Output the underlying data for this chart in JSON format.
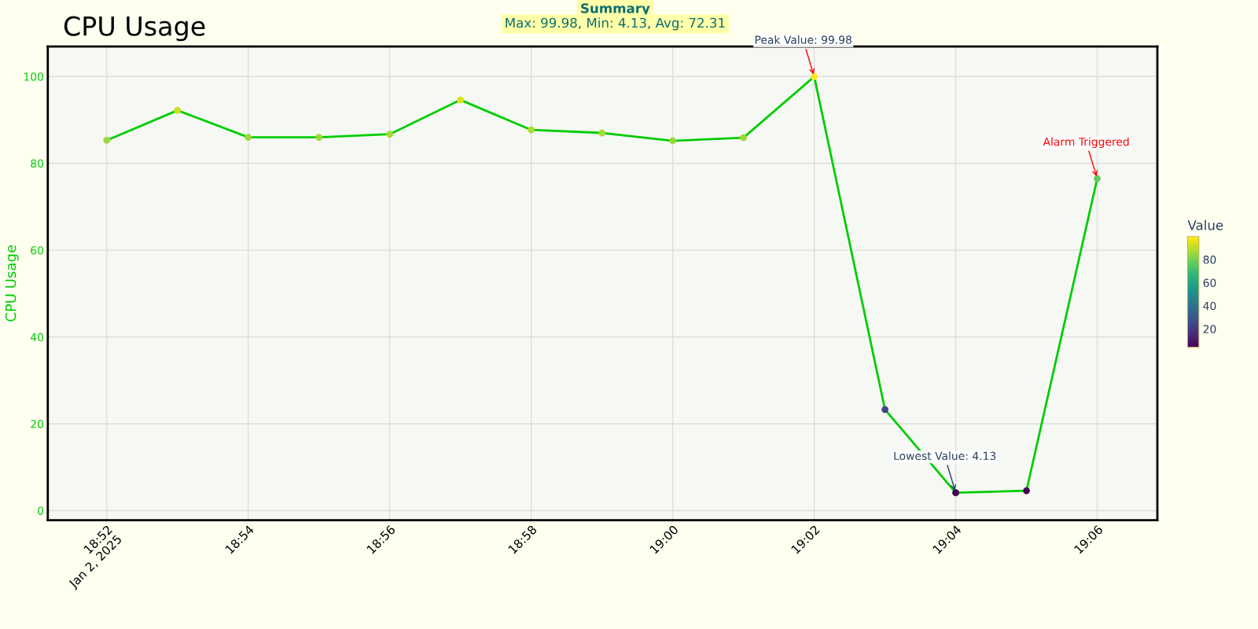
{
  "chart_data": {
    "type": "line",
    "title": "CPU Usage",
    "ylabel": "CPU Usage",
    "clabel": "Value",
    "annotations": [
      "Summary",
      "Max: 99.98, Min: 4.13, Avg: 72.31",
      {
        "text": "Peak Value: 99.98",
        "x": "2025-01-02T19:02",
        "y": 99.98
      },
      {
        "text": "Lowest Value: 4.13",
        "x": "2025-01-02T19:04",
        "y": 4.13
      },
      {
        "text": "Alarm Triggered",
        "x": "2025-01-02T19:06",
        "y": 76.5
      }
    ],
    "x": [
      "2025-01-02T18:52",
      "2025-01-02T18:53",
      "2025-01-02T18:54",
      "2025-01-02T18:55",
      "2025-01-02T18:56",
      "2025-01-02T18:57",
      "2025-01-02T18:58",
      "2025-01-02T18:59",
      "2025-01-02T19:00",
      "2025-01-02T19:01",
      "2025-01-02T19:02",
      "2025-01-02T19:03",
      "2025-01-02T19:04",
      "2025-01-02T19:05",
      "2025-01-02T19:06"
    ],
    "series": [
      {
        "color": "#00cc00",
        "values": [
          85.3,
          92.2,
          86.0,
          86.0,
          86.7,
          94.6,
          87.7,
          87.0,
          85.2,
          85.9,
          99.98,
          23.3,
          4.13,
          4.6,
          76.5
        ]
      }
    ],
    "clim": [
      4.13,
      99.98
    ],
    "cticks": [
      20,
      40,
      60,
      80
    ],
    "xlim": [
      "2025-01-02T18:51:10",
      "2025-01-02T19:06:51"
    ],
    "xticks": [
      {
        "value": "2025-01-02T18:52",
        "label": "18:52\nJan 2, 2025"
      },
      {
        "value": "2025-01-02T18:54",
        "label": "18:54"
      },
      {
        "value": "2025-01-02T18:56",
        "label": "18:56"
      },
      {
        "value": "2025-01-02T18:58",
        "label": "18:58"
      },
      {
        "value": "2025-01-02T19:00",
        "label": "19:00"
      },
      {
        "value": "2025-01-02T19:02",
        "label": "19:02"
      },
      {
        "value": "2025-01-02T19:04",
        "label": "19:04"
      },
      {
        "value": "2025-01-02T19:06",
        "label": "19:06"
      }
    ],
    "ylim": [
      -2.2,
      106.9
    ],
    "yticks": [
      0,
      20,
      40,
      60,
      80,
      100
    ],
    "grid": true,
    "marker": "circle",
    "line_style": "solid"
  }
}
